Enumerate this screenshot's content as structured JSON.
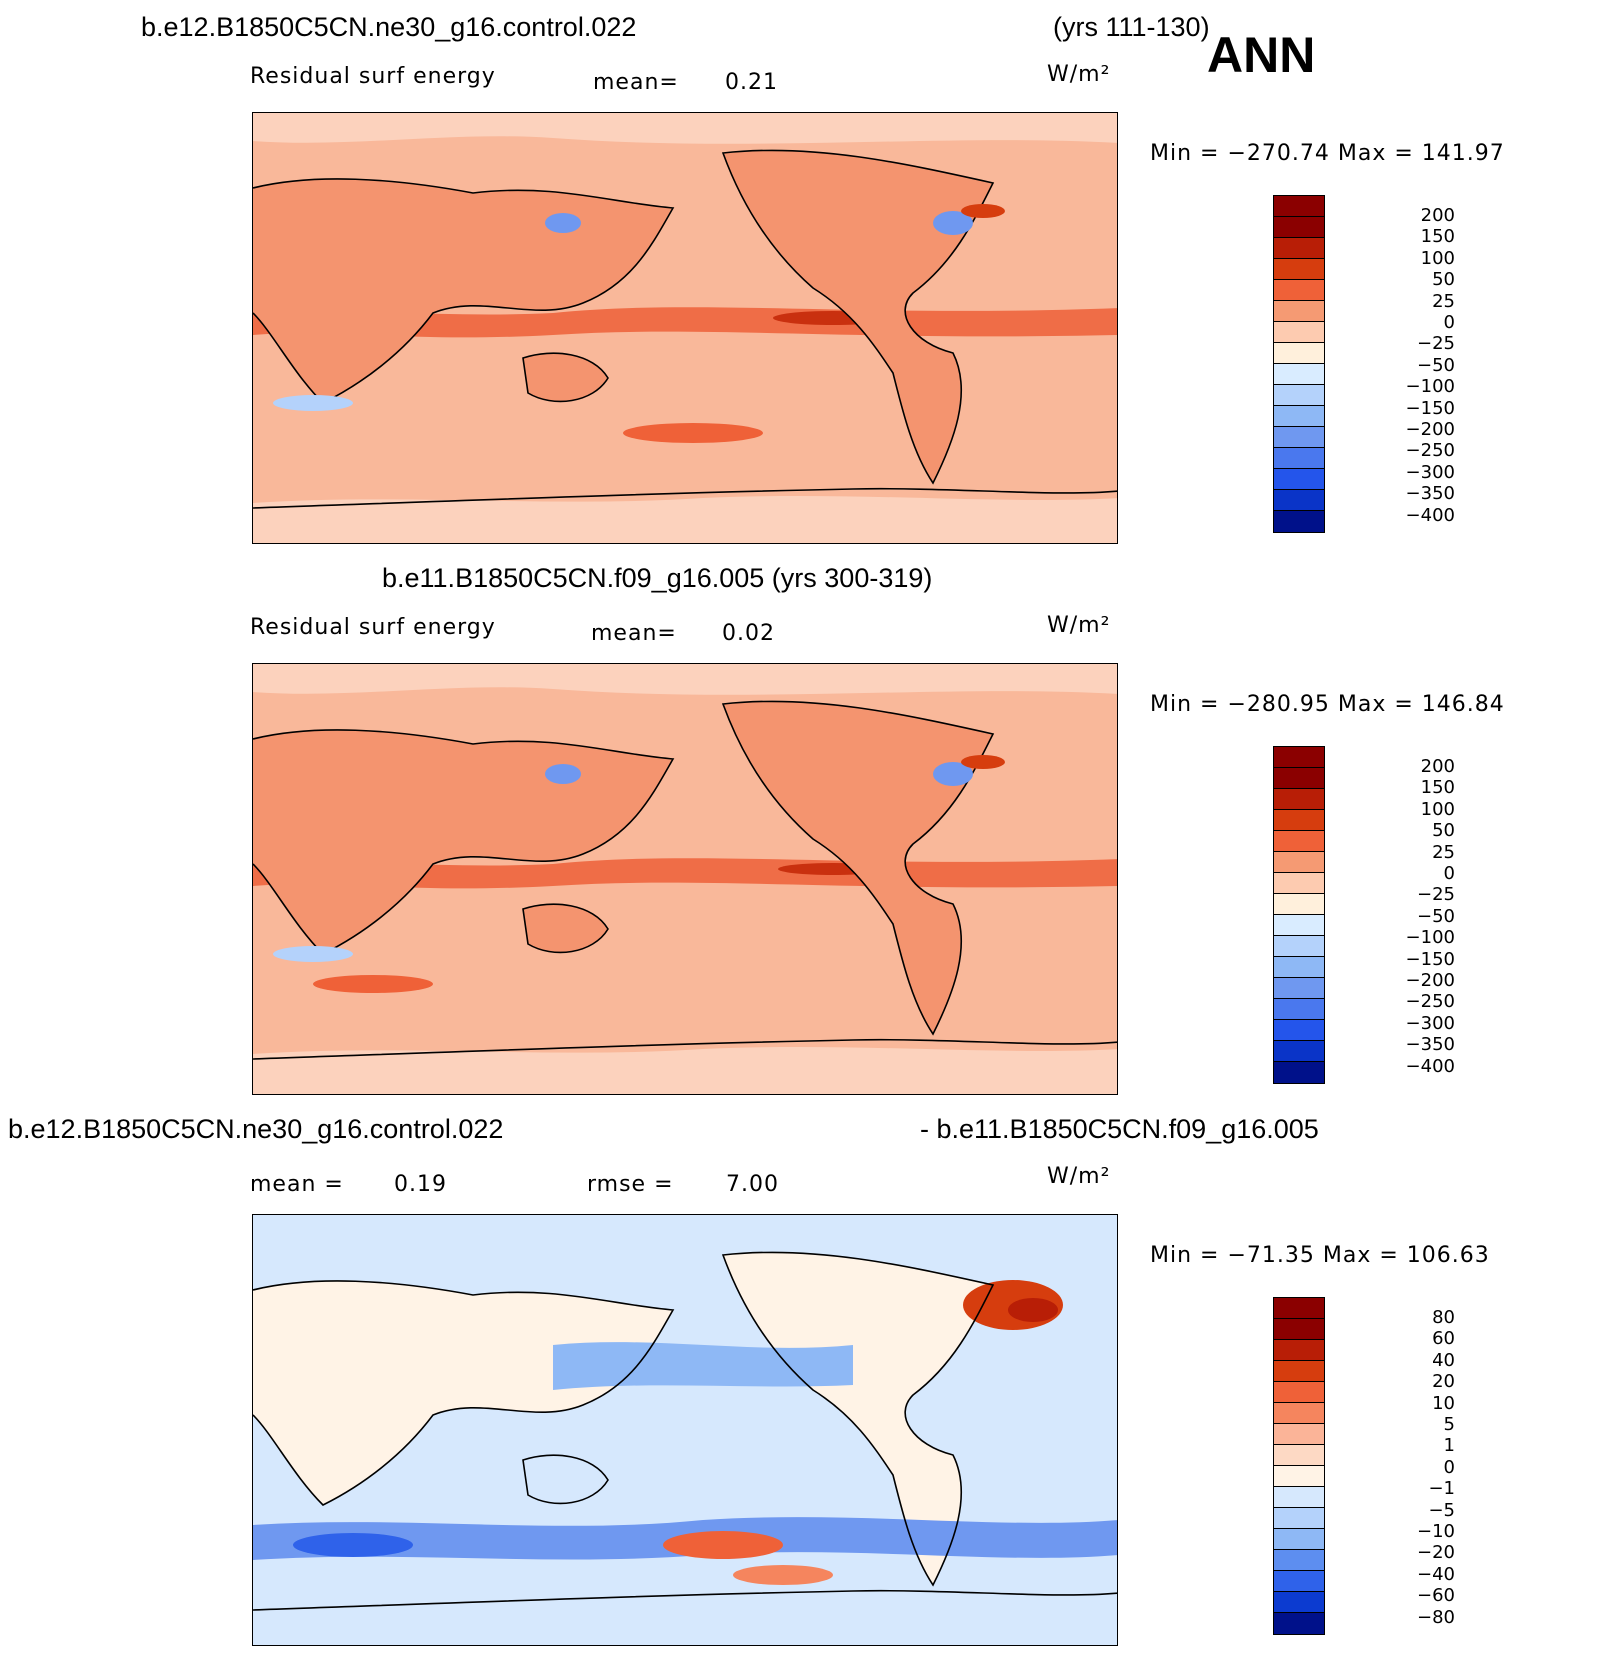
{
  "global": {
    "season": "ANN",
    "units": "W/m²"
  },
  "panels": [
    {
      "case_name": "b.e12.B1850C5CN.ne30_g16.control.022",
      "years": "(yrs 111-130)",
      "variable_label": "Residual surf energy",
      "stat1_label": "mean=",
      "stat1_value": "0.21",
      "units": "W/m²",
      "min_max": "Min = −270.74 Max = 141.97",
      "colorbar_levels": [
        "200",
        "150",
        "100",
        "50",
        "25",
        "0",
        "−25",
        "−50",
        "−100",
        "−150",
        "−200",
        "−250",
        "−300",
        "−350",
        "−400"
      ],
      "colorbar_colors": [
        "#8b0000",
        "#b81e06",
        "#d63d0e",
        "#ef6138",
        "#f59a73",
        "#fdcbb0",
        "#fff0dc",
        "#d9ecff",
        "#b4d2fb",
        "#8eb8f5",
        "#6f98f0",
        "#4a78ee",
        "#2455eb",
        "#0a34c8",
        "#00118a"
      ]
    },
    {
      "case_name": "b.e11.B1850C5CN.f09_g16.005 (yrs 300-319)",
      "variable_label": "Residual surf energy",
      "stat1_label": "mean=",
      "stat1_value": "0.02",
      "units": "W/m²",
      "min_max": "Min = −280.95 Max = 146.84",
      "colorbar_levels": [
        "200",
        "150",
        "100",
        "50",
        "25",
        "0",
        "−25",
        "−50",
        "−100",
        "−150",
        "−200",
        "−250",
        "−300",
        "−350",
        "−400"
      ],
      "colorbar_colors": [
        "#8b0000",
        "#b81e06",
        "#d63d0e",
        "#ef6138",
        "#f59a73",
        "#fdcbb0",
        "#fff0dc",
        "#d9ecff",
        "#b4d2fb",
        "#8eb8f5",
        "#6f98f0",
        "#4a78ee",
        "#2455eb",
        "#0a34c8",
        "#00118a"
      ]
    },
    {
      "case_name_left": "b.e12.B1850C5CN.ne30_g16.control.022",
      "case_name_right": "- b.e11.B1850C5CN.f09_g16.005",
      "stat1_label": "mean =",
      "stat1_value": "0.19",
      "stat2_label": "rmse =",
      "stat2_value": "7.00",
      "units": "W/m²",
      "min_max": "Min = −71.35 Max = 106.63",
      "colorbar_levels": [
        "80",
        "60",
        "40",
        "20",
        "10",
        "5",
        "1",
        "0",
        "−1",
        "−5",
        "−10",
        "−20",
        "−40",
        "−60",
        "−80"
      ],
      "colorbar_colors": [
        "#8b0000",
        "#b81e06",
        "#d63d0e",
        "#ef6138",
        "#f5855e",
        "#fbb498",
        "#fdd9c4",
        "#fff3e6",
        "#d6e8fd",
        "#b4d2fb",
        "#8eb8f5",
        "#5d8ef0",
        "#2f62ea",
        "#0c3bd0",
        "#00118a"
      ]
    }
  ]
}
